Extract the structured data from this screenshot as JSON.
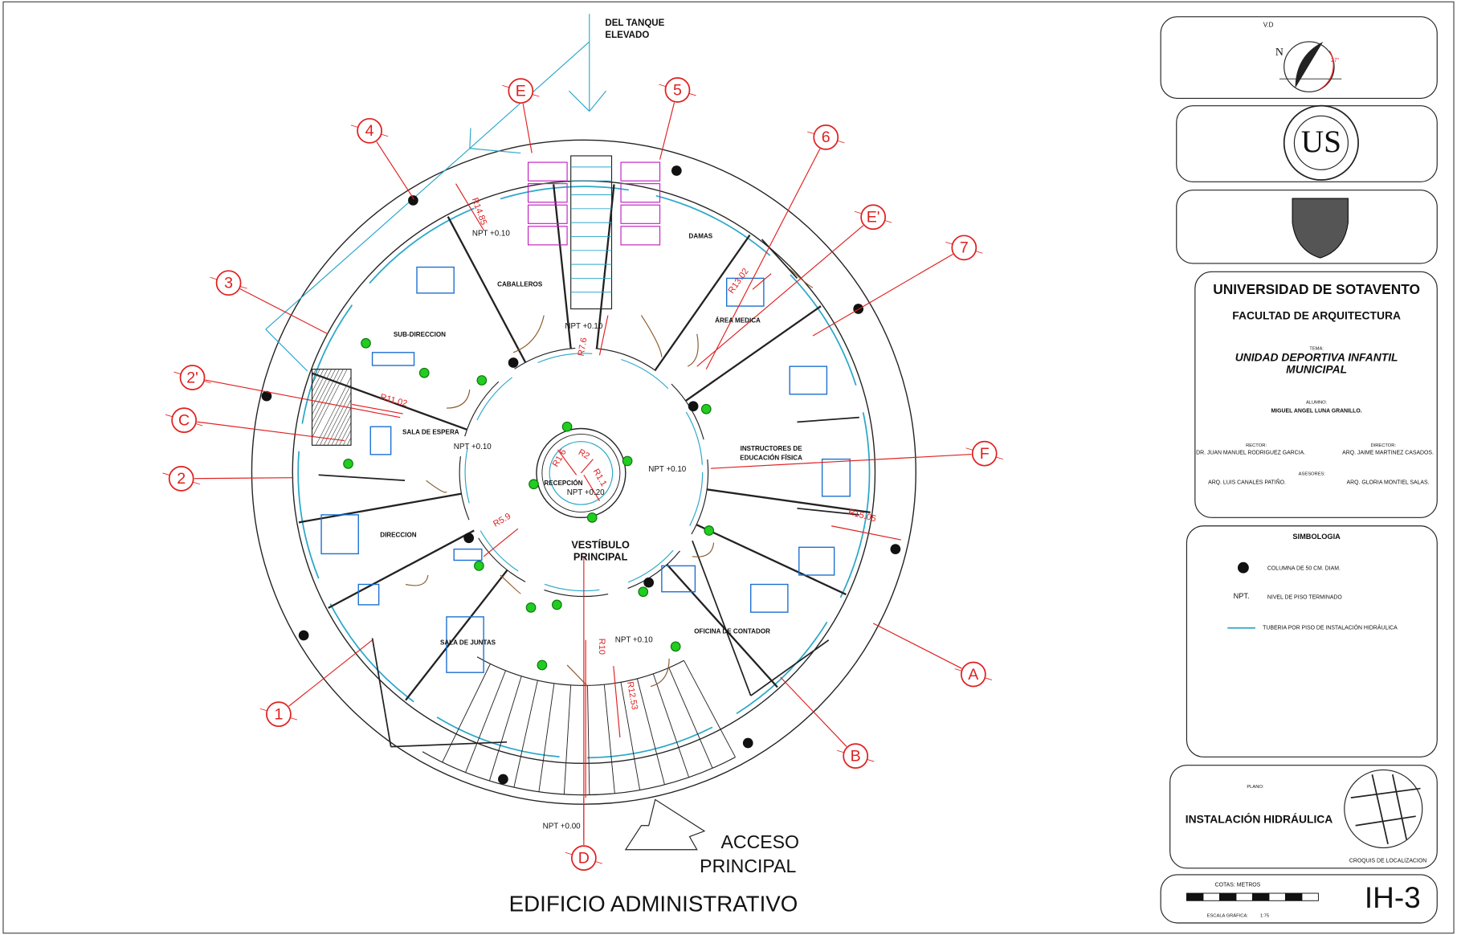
{
  "plan": {
    "annotation": [
      "DEL TANQUE",
      "ELEVADO"
    ],
    "axes": [
      "E",
      "5",
      "4",
      "6",
      "E'",
      "7",
      "3",
      "2'",
      "C",
      "2",
      "F",
      "1",
      "A",
      "B",
      "D"
    ],
    "rooms": [
      "CABALLEROS",
      "DAMAS",
      "SUB-DIRECCION",
      "ÁREA MEDICA",
      "SALA DE ESPERA",
      "INSTRUCTORES DE",
      "EDUCACIÓN FÍSICA",
      "DIRECCION",
      "RECEPCIÓN",
      "VESTÍBULO",
      "PRINCIPAL",
      "SALA DE JUNTAS",
      "OFICINA DE CONTADOR"
    ],
    "levels": [
      "NPT +0.10",
      "NPT +0.10",
      "NPT +0.10",
      "NPT +0.10",
      "NPT +0.20",
      "NPT +0.10",
      "NPT +0.00"
    ],
    "radii": [
      "R14.85",
      "R13.02",
      "R7.6",
      "R11.02",
      "R1.6",
      "R2",
      "R1.1",
      "R5.9",
      "R15.05",
      "R10",
      "R12.53"
    ],
    "access": [
      "ACCESO",
      "PRINCIPAL"
    ],
    "title": "EDIFICIO ADMINISTRATIVO"
  },
  "title_block": {
    "compass": {
      "vd": "V.D",
      "north": "N",
      "angle": "27°"
    },
    "logo": "US",
    "university": "UNIVERSIDAD DE SOTAVENTO",
    "faculty": "FACULTAD DE ARQUITECTURA",
    "topic_label": "TEMA:",
    "topic": [
      "UNIDAD DEPORTIVA INFANTIL",
      "MUNICIPAL"
    ],
    "student_label": "ALUMNO:",
    "student": "MIGUEL ANGEL LUNA GRANILLO.",
    "rector_label": "RECTOR:",
    "rector": "DR. JUAN MANUEL RODRIGUEZ GARCIA.",
    "director_label": "DIRECTOR:",
    "director": "ARQ. JAIME MARTINEZ CASADOS.",
    "advisors_label": "ASESORES:",
    "advisors": [
      "ARQ. LUIS CANALES PATIÑO.",
      "ARQ. GLORIA MONTIEL SALAS."
    ],
    "legend_title": "SIMBOLOGIA",
    "legend": [
      {
        "symbol": null,
        "text": "COLUMNA DE 50 CM. DIAM."
      },
      {
        "symbol": "NPT.",
        "text": "NIVEL DE PISO TERMINADO"
      },
      {
        "symbol": null,
        "text": "TUBERIA  POR PISO DE INSTALACIÓN HIDRÁULICA"
      }
    ],
    "plan_label": "PLANO:",
    "plan_name": "INSTALACIÓN HIDRÁULICA",
    "location_sketch": "CROQUIS DE LOCALIZACION",
    "dimensions": "COTAS: METROS",
    "scale_label": "ESCALA GRÁFICA:",
    "scale": "1:75",
    "sheet": "IH-3"
  }
}
